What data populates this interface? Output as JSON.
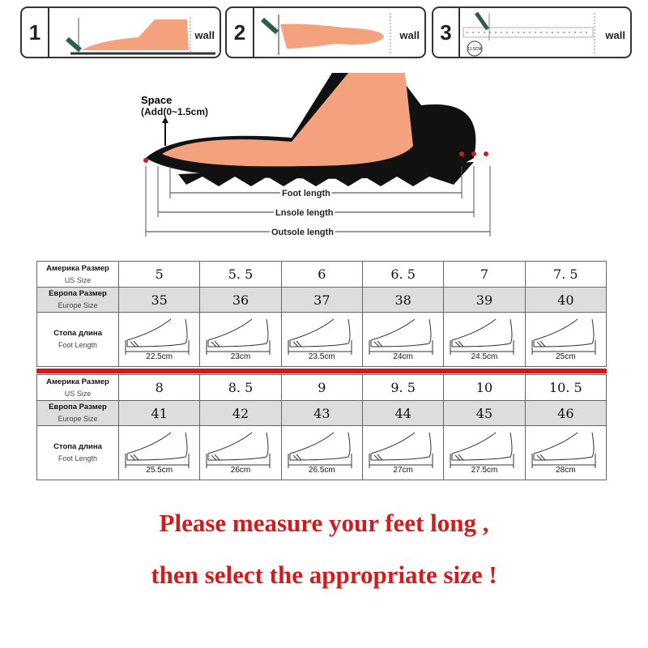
{
  "steps": [
    {
      "num": "1",
      "wall": "wall"
    },
    {
      "num": "2",
      "wall": "wall"
    },
    {
      "num": "3",
      "wall": "wall",
      "circle": "11.5CM"
    }
  ],
  "diagram": {
    "space": "Space",
    "add": "(Add(0~1.5cm)",
    "foot_length": "Foot length",
    "insole_length": "Lnsole length",
    "outsole_length": "Outsole length"
  },
  "labels": {
    "us_ru": "Америка Размер",
    "us": "US Size",
    "eu_ru": "Европа Размер",
    "eu": "Europe Size",
    "ft_ru": "Стопа длина",
    "ft": "Foot Length"
  },
  "table1": {
    "us": [
      "5",
      "5. 5",
      "6",
      "6. 5",
      "7",
      "7. 5"
    ],
    "eu": [
      "35",
      "36",
      "37",
      "38",
      "39",
      "40"
    ],
    "foot": [
      "22.5cm",
      "23cm",
      "23.5cm",
      "24cm",
      "24.5cm",
      "25cm"
    ]
  },
  "table2": {
    "us": [
      "8",
      "8. 5",
      "9",
      "9. 5",
      "10",
      "10. 5"
    ],
    "eu": [
      "41",
      "42",
      "43",
      "44",
      "45",
      "46"
    ],
    "foot": [
      "25.5cm",
      "26cm",
      "26.5cm",
      "27cm",
      "27.5cm",
      "28cm"
    ]
  },
  "message": {
    "line1": "Please measure your feet long ,",
    "line2": "then select the appropriate size !"
  },
  "colors": {
    "accent": "#d01c1c",
    "skin": "#f4a27e"
  }
}
